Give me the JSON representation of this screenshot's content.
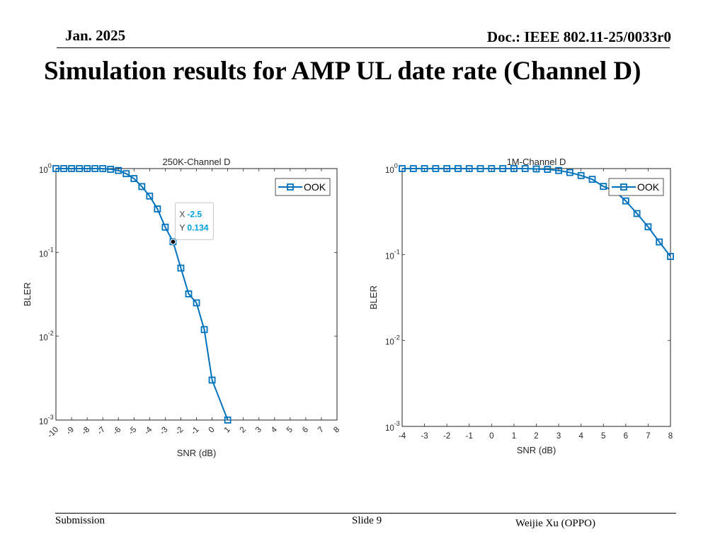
{
  "header": {
    "date": "Jan. 2025",
    "doc": "Doc.: IEEE 802.11-25/0033r0"
  },
  "slide": {
    "title": "Simulation results for AMP UL date rate (Channel D)"
  },
  "footer": {
    "submission": "Submission",
    "slide_number": "Slide 9",
    "author": "Weijie Xu (OPPO)"
  },
  "colors": {
    "series": "#0072bd",
    "datatip_value": "#00a0e0"
  },
  "chart_data": [
    {
      "type": "line",
      "title": "250K-Channel D",
      "xlabel": "SNR (dB)",
      "ylabel": "BLER",
      "yscale": "log",
      "xlim": [
        -10,
        8
      ],
      "ylim": [
        0.001,
        1
      ],
      "xticks": [
        -10,
        -9,
        -8,
        -7,
        -6,
        -5,
        -4,
        -3,
        -2,
        -1,
        0,
        1,
        2,
        3,
        4,
        5,
        6,
        7,
        8
      ],
      "yticks": [
        {
          "value": 1,
          "base": "10",
          "exp": "0"
        },
        {
          "value": 0.1,
          "base": "10",
          "exp": "-1"
        },
        {
          "value": 0.01,
          "base": "10",
          "exp": "-2"
        },
        {
          "value": 0.001,
          "base": "10",
          "exp": "-3"
        }
      ],
      "x_tick_rotation": "rotated",
      "grid": false,
      "legend_position": "top-right",
      "series": [
        {
          "name": "OOK",
          "marker": "square",
          "x": [
            -10,
            -9.5,
            -9,
            -8.5,
            -8,
            -7.5,
            -7,
            -6.5,
            -6,
            -5.5,
            -5,
            -4.5,
            -4,
            -3.5,
            -3,
            -2.5,
            -2,
            -1.5,
            -1,
            -0.5,
            0,
            1
          ],
          "y": [
            1,
            1,
            1,
            1,
            1,
            1,
            1,
            0.98,
            0.95,
            0.87,
            0.76,
            0.61,
            0.47,
            0.33,
            0.2,
            0.134,
            0.065,
            0.032,
            0.025,
            0.012,
            0.003,
            0.001
          ]
        }
      ],
      "datatip": {
        "x_label": "X",
        "x_value": "-2.5",
        "y_label": "Y",
        "y_value": "0.134",
        "x": -2.5,
        "y": 0.134
      }
    },
    {
      "type": "line",
      "title": "1M-Channel D",
      "xlabel": "SNR (dB)",
      "ylabel": "BLER",
      "yscale": "log",
      "xlim": [
        -4,
        8
      ],
      "ylim": [
        0.001,
        1
      ],
      "xticks": [
        -4,
        -3,
        -2,
        -1,
        0,
        1,
        2,
        3,
        4,
        5,
        6,
        7,
        8
      ],
      "yticks": [
        {
          "value": 1,
          "base": "10",
          "exp": "0"
        },
        {
          "value": 0.1,
          "base": "10",
          "exp": "-1"
        },
        {
          "value": 0.01,
          "base": "10",
          "exp": "-2"
        },
        {
          "value": 0.001,
          "base": "10",
          "exp": "-3"
        }
      ],
      "x_tick_rotation": "none",
      "grid": false,
      "legend_position": "top-right",
      "series": [
        {
          "name": "OOK",
          "marker": "square",
          "x": [
            -4,
            -3.5,
            -3,
            -2.5,
            -2,
            -1.5,
            -1,
            -0.5,
            0,
            0.5,
            1,
            1.5,
            2,
            2.5,
            3,
            3.5,
            4,
            4.5,
            5,
            5.5,
            6,
            6.5,
            7,
            7.5,
            8
          ],
          "y": [
            1,
            1,
            1,
            1,
            1,
            1,
            1,
            1,
            1,
            1,
            1,
            1,
            0.99,
            0.98,
            0.95,
            0.9,
            0.83,
            0.75,
            0.62,
            0.55,
            0.42,
            0.3,
            0.21,
            0.14,
            0.095
          ]
        }
      ]
    }
  ]
}
